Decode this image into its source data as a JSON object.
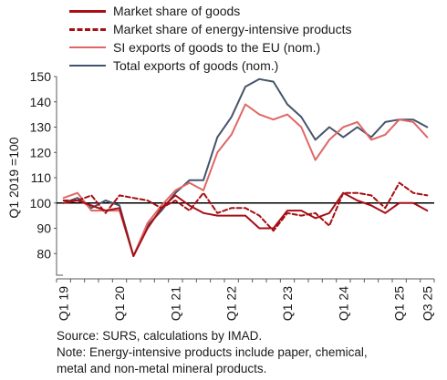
{
  "chart_data": {
    "type": "line",
    "title": "",
    "ylabel": "Q1 2019 =100",
    "xlabel": "",
    "ylim": [
      70,
      150
    ],
    "yticks": [
      80,
      90,
      100,
      110,
      120,
      130,
      140,
      150
    ],
    "axis_break": true,
    "reference_line": 100,
    "grid": false,
    "legend_position": "top",
    "categories": [
      "Q1 19",
      "Q2 19",
      "Q3 19",
      "Q4 19",
      "Q1 20",
      "Q2 20",
      "Q3 20",
      "Q4 20",
      "Q1 21",
      "Q2 21",
      "Q3 21",
      "Q4 21",
      "Q1 22",
      "Q2 22",
      "Q3 22",
      "Q4 22",
      "Q1 23",
      "Q2 23",
      "Q3 23",
      "Q4 23",
      "Q1 24",
      "Q2 24",
      "Q3 24",
      "Q4 24",
      "Q1 25",
      "Q2 25",
      "Q3 25"
    ],
    "x_tick_labels": [
      "Q1 19",
      "Q1 20",
      "Q1 21",
      "Q1 22",
      "Q1 23",
      "Q1 24",
      "Q1 25",
      "Q3 25"
    ],
    "x_tick_indices": [
      0,
      4,
      8,
      12,
      16,
      20,
      24,
      26
    ],
    "series": [
      {
        "name": "Market share of goods",
        "style": "solid",
        "color": "#a50f15",
        "values": [
          100,
          101,
          99,
          97,
          98,
          79,
          90,
          98,
          103,
          99,
          96,
          95,
          95,
          95,
          90,
          90,
          97,
          97,
          94,
          96,
          104,
          101,
          99,
          96,
          100,
          100,
          97
        ]
      },
      {
        "name": "Market share of energy-intensive products",
        "style": "dashed",
        "color": "#a50f15",
        "values": [
          101,
          101,
          103,
          96,
          103,
          102,
          101,
          98,
          101,
          97,
          104,
          96,
          98,
          98,
          95,
          89,
          96,
          95,
          96,
          91,
          104,
          104,
          103,
          98,
          108,
          104,
          103
        ]
      },
      {
        "name": "SI exports of goods to the EU (nom.)",
        "style": "solid",
        "color": "#e06666",
        "values": [
          102,
          104,
          97,
          97,
          97,
          79,
          92,
          99,
          105,
          108,
          105,
          120,
          127,
          139,
          135,
          133,
          135,
          130,
          117,
          125,
          130,
          132,
          125,
          127,
          133,
          132,
          126
        ]
      },
      {
        "name": "Total exports of goods (nom.)",
        "style": "solid",
        "color": "#44546a",
        "values": [
          100,
          102,
          98,
          101,
          99,
          79,
          91,
          97,
          104,
          109,
          109,
          126,
          134,
          146,
          149,
          148,
          139,
          134,
          125,
          130,
          126,
          130,
          126,
          132,
          133,
          133,
          130
        ]
      }
    ]
  },
  "notes": {
    "source": "Source: SURS, calculations by IMAD.",
    "note_line1": "Note: Energy-intensive products include paper, chemical,",
    "note_line2": "metal and non-metal mineral products."
  }
}
